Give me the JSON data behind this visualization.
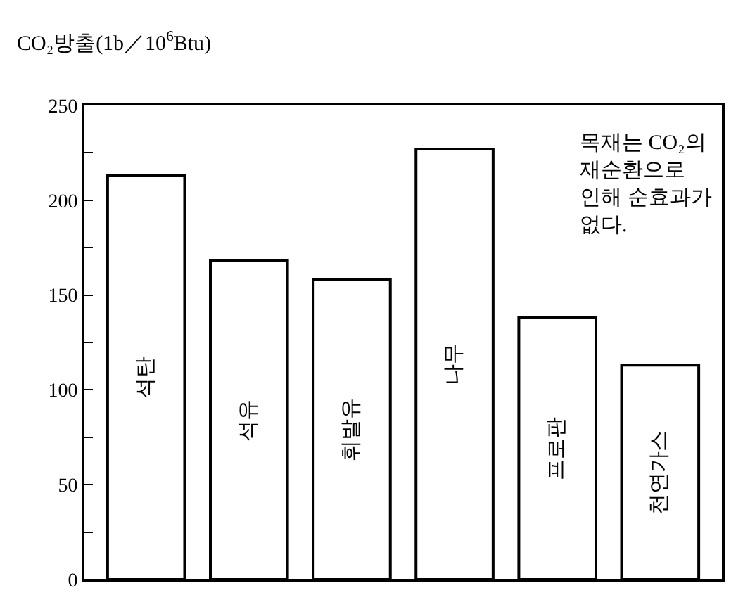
{
  "chart_data": {
    "type": "bar",
    "ylabel": "CO₂방출(1b／10$^{6}$Btu)",
    "categories": [
      "석탄",
      "석유",
      "휘발유",
      "나무",
      "프로판",
      "천연가스"
    ],
    "series": [
      {
        "color": "#ffffff",
        "values": [
          213,
          168,
          158,
          227,
          138,
          113
        ]
      }
    ],
    "ylim": [
      0,
      250
    ],
    "yticks": [
      0,
      {
        "value": 25,
        "label": null
      },
      50,
      {
        "value": 75,
        "label": null
      },
      100,
      {
        "value": 125,
        "label": null
      },
      150,
      {
        "value": 175,
        "label": null
      },
      200,
      {
        "value": 225,
        "label": null
      },
      250
    ],
    "tick_labels": "y",
    "legend": false,
    "annotations": [
      "목재는 CO₂의\n재순환으로\n인해 순효과가\n없다."
    ]
  }
}
